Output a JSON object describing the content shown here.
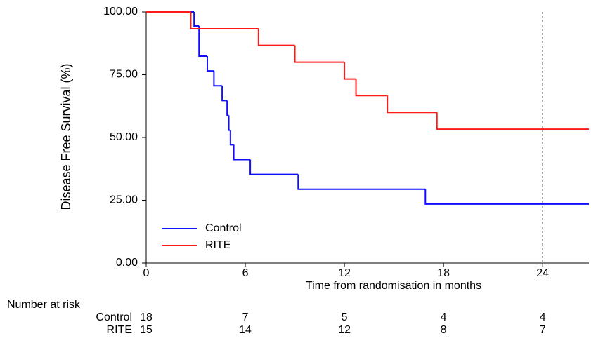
{
  "chart_data": {
    "type": "step",
    "ylabel": "Disease Free Survival (%)",
    "xlabel": "Time from randomisation in months",
    "xlim": [
      0,
      26.8
    ],
    "ylim": [
      0,
      100
    ],
    "xticks": [
      0,
      6,
      12,
      18,
      24
    ],
    "yticks": [
      {
        "value": 0,
        "label": "0.00"
      },
      {
        "value": 25,
        "label": "25.00"
      },
      {
        "value": 50,
        "label": "50.00"
      },
      {
        "value": 75,
        "label": "75.00"
      },
      {
        "value": 100,
        "label": "100.00"
      }
    ],
    "reference_line_x": 24,
    "legend": "lower left",
    "series": [
      {
        "name": "Control",
        "color": "#1010ff",
        "x": [
          0,
          2.9,
          3.2,
          3.7,
          4.1,
          4.6,
          4.9,
          5.0,
          5.1,
          5.3,
          6.3,
          9.2,
          16.9,
          26.8
        ],
        "values": [
          100,
          94.4,
          82.4,
          76.5,
          70.6,
          64.7,
          58.8,
          52.9,
          47.1,
          41.2,
          35.3,
          29.4,
          23.5,
          23.5
        ]
      },
      {
        "name": "RITE",
        "color": "#ff1a1a",
        "x": [
          0,
          2.7,
          6.8,
          9.0,
          12.0,
          12.7,
          14.6,
          17.6,
          26.8
        ],
        "values": [
          100,
          93.3,
          86.7,
          80.0,
          73.3,
          66.7,
          60.0,
          53.3,
          53.3
        ]
      }
    ],
    "risk_table": {
      "title": "Number at risk",
      "rows": [
        {
          "name": "Control",
          "values": [
            18,
            7,
            5,
            4,
            4
          ]
        },
        {
          "name": "RITE",
          "values": [
            15,
            14,
            12,
            8,
            7
          ]
        }
      ]
    }
  }
}
